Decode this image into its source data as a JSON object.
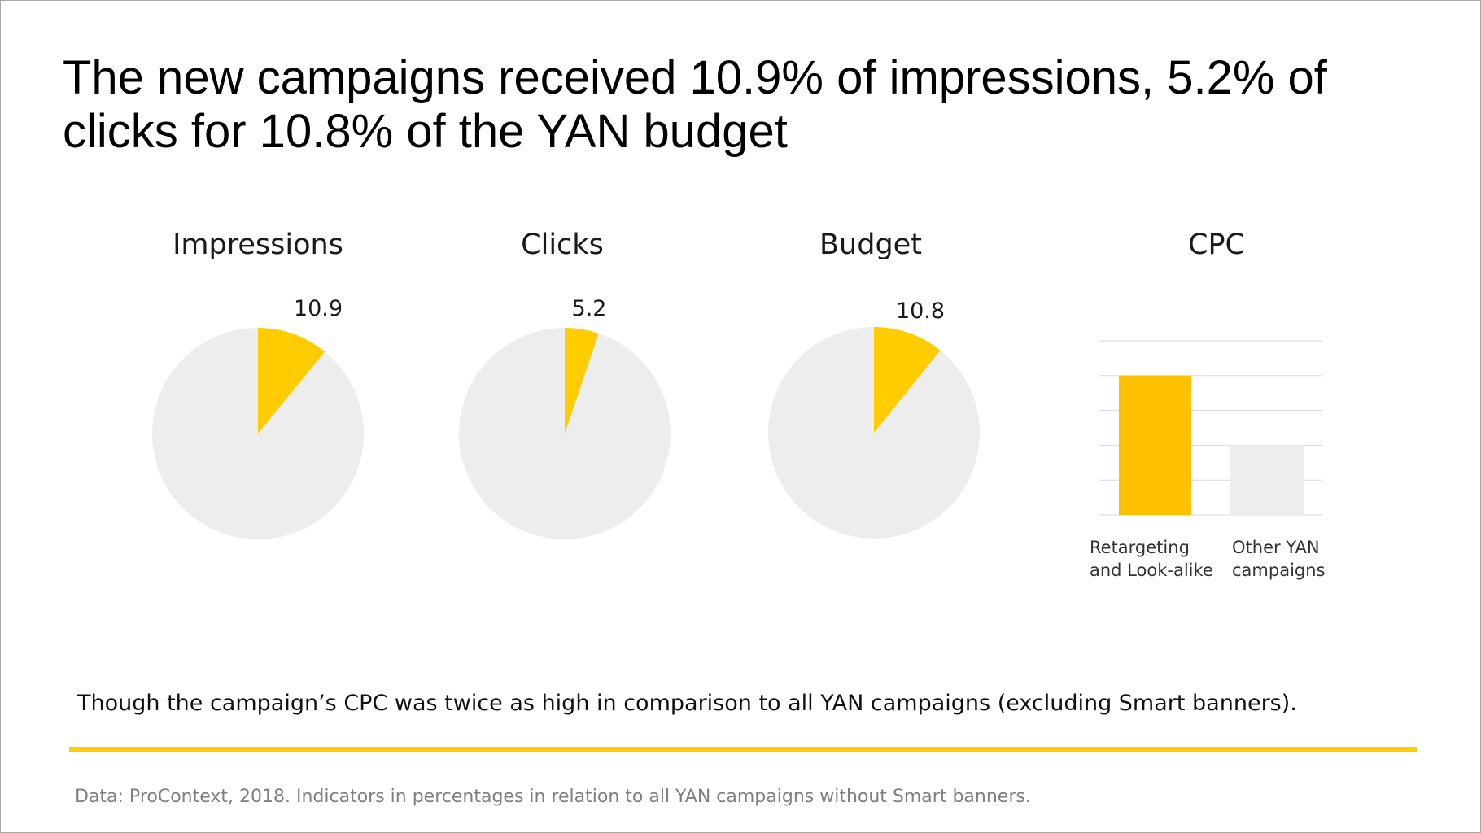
{
  "headline": "The new campaigns received 10.9% of impressions, 5.2% of clicks for 10.8% of the YAN budget",
  "colors": {
    "accent": "#ffcc00",
    "bar_accent": "#ffc000",
    "neutral": "#ededed",
    "grid": "#d9d9d9"
  },
  "chart_data": [
    {
      "type": "pie",
      "title": "Impressions",
      "value": 10.9,
      "value_label": "10.9",
      "rest": 89.1
    },
    {
      "type": "pie",
      "title": "Clicks",
      "value": 5.2,
      "value_label": "5.2",
      "rest": 94.8
    },
    {
      "type": "pie",
      "title": "Budget",
      "value": 10.8,
      "value_label": "10.8",
      "rest": 89.2
    },
    {
      "type": "bar",
      "title": "CPC",
      "categories": [
        "Retargeting and Look-alike",
        "Other YAN campaigns"
      ],
      "category_labels": [
        [
          "Retargeting",
          "and Look-alike"
        ],
        [
          "Other YAN",
          "campaigns"
        ]
      ],
      "values": [
        4,
        2
      ],
      "ylim": [
        0,
        5
      ],
      "grid": true
    }
  ],
  "note": "Though the campaign’s CPC was twice as high in comparison to all YAN campaigns (excluding Smart banners).",
  "footnote": "Data: ProContext, 2018. Indicators in percentages in relation to all YAN campaigns without Smart banners."
}
